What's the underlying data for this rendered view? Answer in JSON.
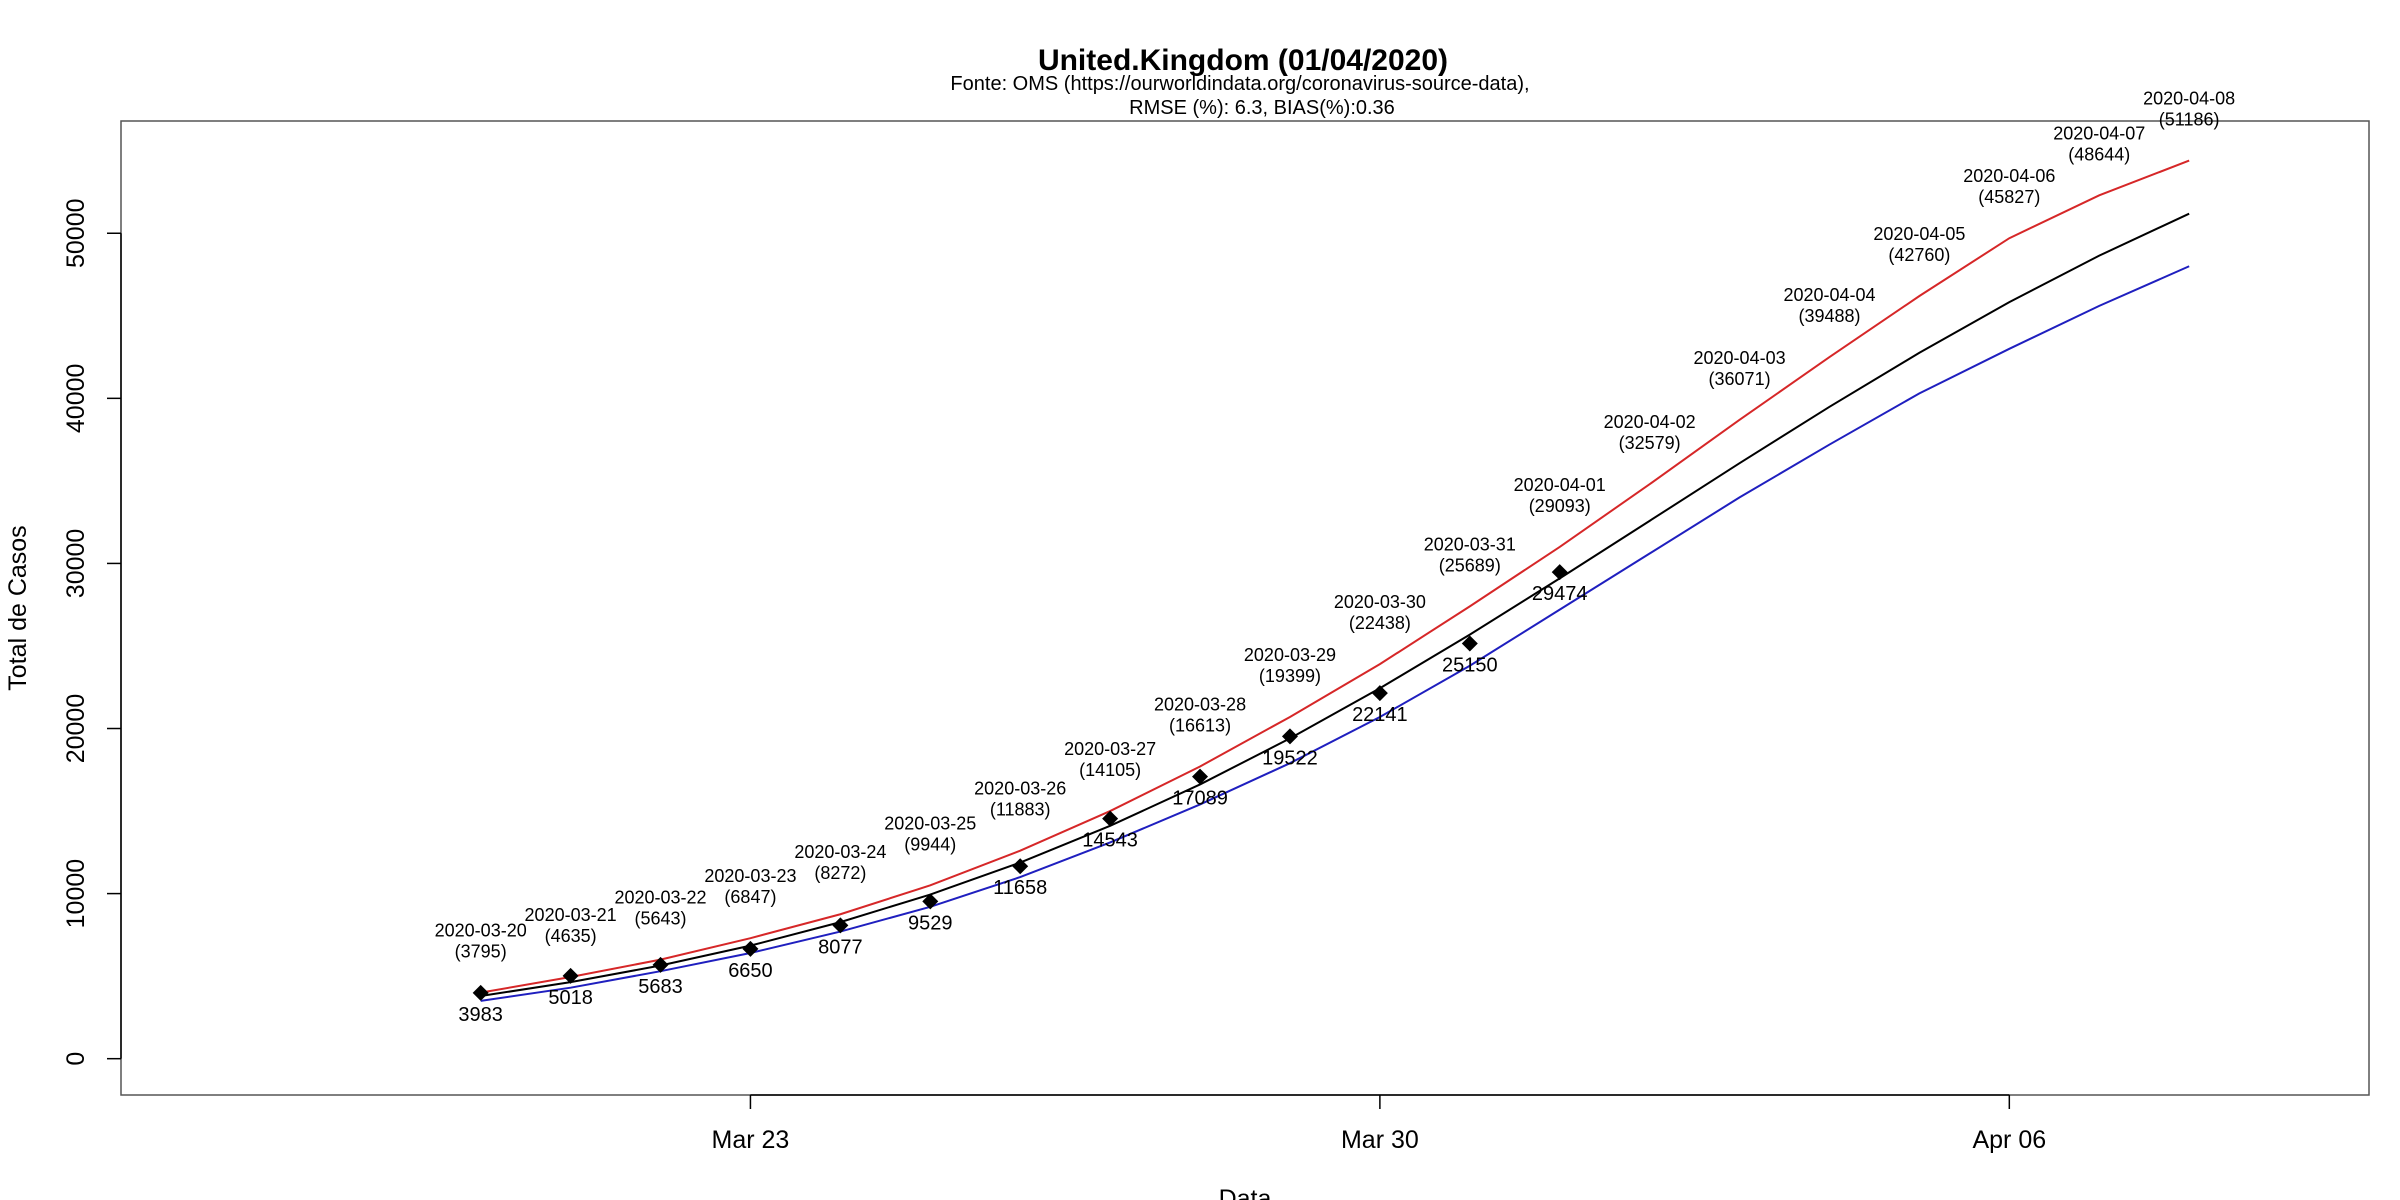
{
  "chart_data": {
    "type": "line",
    "title": "United.Kingdom (01/04/2020)",
    "subtitle_lines": [
      "Fonte: OMS (https://ourworldindata.org/coronavirus-source-data),",
      "RMSE (%): 6.3, BIAS(%):0.36"
    ],
    "xlabel": "Data",
    "ylabel": "Total de Casos",
    "x_ticks": [
      {
        "date": "2020-03-23",
        "label": "Mar 23"
      },
      {
        "date": "2020-03-30",
        "label": "Mar 30"
      },
      {
        "date": "2020-04-06",
        "label": "Apr 06"
      }
    ],
    "y_ticks": [
      0,
      10000,
      20000,
      30000,
      40000,
      50000
    ],
    "xlim": [
      "2020-03-16",
      "2020-04-10"
    ],
    "ylim": [
      -2200,
      56800
    ],
    "grid": false,
    "legend": "none",
    "observed": {
      "marker": "diamond",
      "points": [
        {
          "date": "2020-03-20",
          "value": 3983
        },
        {
          "date": "2020-03-21",
          "value": 5018
        },
        {
          "date": "2020-03-22",
          "value": 5683
        },
        {
          "date": "2020-03-23",
          "value": 6650
        },
        {
          "date": "2020-03-24",
          "value": 8077
        },
        {
          "date": "2020-03-25",
          "value": 9529
        },
        {
          "date": "2020-03-26",
          "value": 11658
        },
        {
          "date": "2020-03-27",
          "value": 14543
        },
        {
          "date": "2020-03-28",
          "value": 17089
        },
        {
          "date": "2020-03-29",
          "value": 19522
        },
        {
          "date": "2020-03-30",
          "value": 22141
        },
        {
          "date": "2020-03-31",
          "value": 25150
        },
        {
          "date": "2020-04-01",
          "value": 29474
        }
      ]
    },
    "series": [
      {
        "color": "#000000",
        "x": [
          "2020-03-20",
          "2020-03-21",
          "2020-03-22",
          "2020-03-23",
          "2020-03-24",
          "2020-03-25",
          "2020-03-26",
          "2020-03-27",
          "2020-03-28",
          "2020-03-29",
          "2020-03-30",
          "2020-03-31",
          "2020-04-01",
          "2020-04-02",
          "2020-04-03",
          "2020-04-04",
          "2020-04-05",
          "2020-04-06",
          "2020-04-07",
          "2020-04-08"
        ],
        "values": [
          3795,
          4635,
          5643,
          6847,
          8272,
          9944,
          11883,
          14105,
          16613,
          19399,
          22438,
          25689,
          29093,
          32579,
          36071,
          39488,
          42760,
          45827,
          48644,
          51186
        ]
      },
      {
        "color": "#d62728",
        "x": [
          "2020-03-20",
          "2020-03-21",
          "2020-03-22",
          "2020-03-23",
          "2020-03-24",
          "2020-03-25",
          "2020-03-26",
          "2020-03-27",
          "2020-03-28",
          "2020-03-29",
          "2020-03-30",
          "2020-03-31",
          "2020-04-01",
          "2020-04-02",
          "2020-04-03",
          "2020-04-04",
          "2020-04-05",
          "2020-04-06",
          "2020-04-07",
          "2020-04-08"
        ],
        "values": [
          4000,
          4950,
          6000,
          7300,
          8750,
          10500,
          12600,
          15000,
          17700,
          20700,
          23900,
          27400,
          31000,
          34800,
          38700,
          42500,
          46200,
          49700,
          52300,
          54400
        ]
      },
      {
        "color": "#1f1fbf",
        "x": [
          "2020-03-20",
          "2020-03-21",
          "2020-03-22",
          "2020-03-23",
          "2020-03-24",
          "2020-03-25",
          "2020-03-26",
          "2020-03-27",
          "2020-03-28",
          "2020-03-29",
          "2020-03-30",
          "2020-03-31",
          "2020-04-01",
          "2020-04-02",
          "2020-04-03",
          "2020-04-04",
          "2020-04-05",
          "2020-04-06",
          "2020-04-07",
          "2020-04-08"
        ],
        "values": [
          3500,
          4300,
          5300,
          6400,
          7700,
          9200,
          11000,
          13100,
          15400,
          17900,
          20700,
          23800,
          27200,
          30600,
          34000,
          37200,
          40300,
          43000,
          45600,
          48000
        ]
      }
    ],
    "forecast_labels": [
      {
        "date": "2020-03-20",
        "label": "2020-03-20",
        "value_text": "(3795)"
      },
      {
        "date": "2020-03-21",
        "label": "2020-03-21",
        "value_text": "(4635)"
      },
      {
        "date": "2020-03-22",
        "label": "2020-03-22",
        "value_text": "(5643)"
      },
      {
        "date": "2020-03-23",
        "label": "2020-03-23",
        "value_text": "(6847)"
      },
      {
        "date": "2020-03-24",
        "label": "2020-03-24",
        "value_text": "(8272)"
      },
      {
        "date": "2020-03-25",
        "label": "2020-03-25",
        "value_text": "(9944)"
      },
      {
        "date": "2020-03-26",
        "label": "2020-03-26",
        "value_text": "(11883)"
      },
      {
        "date": "2020-03-27",
        "label": "2020-03-27",
        "value_text": "(14105)"
      },
      {
        "date": "2020-03-28",
        "label": "2020-03-28",
        "value_text": "(16613)"
      },
      {
        "date": "2020-03-29",
        "label": "2020-03-29",
        "value_text": "(19399)"
      },
      {
        "date": "2020-03-30",
        "label": "2020-03-30",
        "value_text": "(22438)"
      },
      {
        "date": "2020-03-31",
        "label": "2020-03-31",
        "value_text": "(25689)"
      },
      {
        "date": "2020-04-01",
        "label": "2020-04-01",
        "value_text": "(29093)"
      },
      {
        "date": "2020-04-02",
        "label": "2020-04-02",
        "value_text": "(32579)"
      },
      {
        "date": "2020-04-03",
        "label": "2020-04-03",
        "value_text": "(36071)"
      },
      {
        "date": "2020-04-04",
        "label": "2020-04-04",
        "value_text": "(39488)"
      },
      {
        "date": "2020-04-05",
        "label": "2020-04-05",
        "value_text": "(42760)"
      },
      {
        "date": "2020-04-06",
        "label": "2020-04-06",
        "value_text": "(45827)"
      },
      {
        "date": "2020-04-07",
        "label": "2020-04-07",
        "value_text": "(48644)"
      },
      {
        "date": "2020-04-08",
        "label": "2020-04-08",
        "value_text": "(51186)"
      }
    ]
  }
}
